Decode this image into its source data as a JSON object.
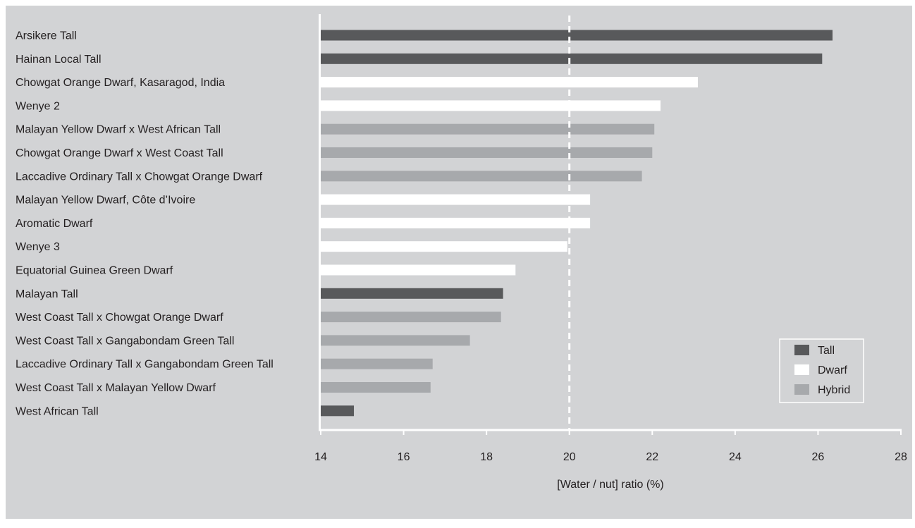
{
  "colors": {
    "background": "#d2d3d5",
    "Tall": "#58595b",
    "Dwarf": "#ffffff",
    "Hybrid": "#a7a9ac",
    "axis": "#ffffff",
    "text": "#231f20"
  },
  "chart_data": {
    "type": "bar",
    "orientation": "horizontal",
    "title": "",
    "xlabel": "[Water /  nut] ratio (%)",
    "ylabel": "",
    "xlim": [
      14,
      28
    ],
    "xticks": [
      14,
      16,
      18,
      20,
      22,
      24,
      26,
      28
    ],
    "reference_line": {
      "x": 20,
      "style": "dashed"
    },
    "grid": false,
    "legend": {
      "placement": "bottom-right",
      "entries": [
        "Tall",
        "Dwarf",
        "Hybrid"
      ]
    },
    "categories": [
      "Arsikere Tall",
      "Hainan Local Tall",
      "Chowgat Orange Dwarf, Kasaragod, India",
      "Wenye 2",
      "Malayan Yellow Dwarf x West African Tall",
      "Chowgat Orange Dwarf x West Coast Tall",
      "Laccadive Ordinary Tall x Chowgat Orange Dwarf",
      "Malayan Yellow Dwarf, Côte d’Ivoire",
      "Aromatic Dwarf",
      "Wenye 3",
      "Equatorial Guinea Green Dwarf",
      "Malayan Tall",
      "West Coast Tall x Chowgat Orange Dwarf",
      "West Coast Tall x Gangabondam Green Tall",
      "Laccadive Ordinary Tall x Gangabondam Green Tall",
      "West Coast Tall x Malayan Yellow Dwarf",
      "West African Tall"
    ],
    "values": [
      26.35,
      26.1,
      23.1,
      22.2,
      22.05,
      22.0,
      21.75,
      20.5,
      20.5,
      19.95,
      18.7,
      18.4,
      18.35,
      17.6,
      16.7,
      16.65,
      14.8
    ],
    "groups": [
      "Tall",
      "Tall",
      "Dwarf",
      "Dwarf",
      "Hybrid",
      "Hybrid",
      "Hybrid",
      "Dwarf",
      "Dwarf",
      "Dwarf",
      "Dwarf",
      "Tall",
      "Hybrid",
      "Hybrid",
      "Hybrid",
      "Hybrid",
      "Tall"
    ]
  }
}
